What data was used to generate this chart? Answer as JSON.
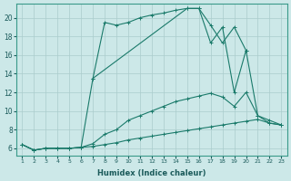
{
  "xlabel": "Humidex (Indice chaleur)",
  "xticks": [
    1,
    2,
    3,
    4,
    5,
    6,
    7,
    8,
    9,
    10,
    11,
    12,
    13,
    14,
    15,
    16,
    17,
    18,
    19,
    20,
    21,
    22,
    23
  ],
  "yticks": [
    6,
    8,
    10,
    12,
    14,
    16,
    18,
    20
  ],
  "background_color": "#cce8e8",
  "grid_color": "#aacccc",
  "line_color": "#1a7a6a",
  "line1_x": [
    1,
    2,
    3,
    4,
    5,
    6,
    7,
    8,
    9,
    10,
    11,
    12,
    13,
    14,
    15,
    16,
    17,
    18,
    19,
    20,
    21,
    22,
    23
  ],
  "line1_y": [
    6.4,
    5.8,
    6.0,
    6.0,
    6.0,
    6.1,
    6.2,
    6.4,
    6.6,
    6.9,
    7.1,
    7.3,
    7.5,
    7.7,
    7.9,
    8.1,
    8.3,
    8.5,
    8.7,
    8.9,
    9.1,
    8.7,
    8.5
  ],
  "line2_x": [
    1,
    2,
    3,
    4,
    5,
    6,
    7,
    8,
    9,
    10,
    11,
    12,
    13,
    14,
    15,
    16,
    17,
    18,
    19,
    20,
    21,
    22,
    23
  ],
  "line2_y": [
    6.4,
    5.8,
    6.0,
    6.0,
    6.0,
    6.1,
    6.5,
    7.5,
    8.0,
    9.0,
    9.5,
    10.0,
    10.5,
    11.0,
    11.3,
    11.6,
    11.9,
    11.5,
    10.5,
    12.0,
    9.5,
    8.7,
    8.5
  ],
  "line3_x": [
    1,
    2,
    3,
    4,
    5,
    6,
    7,
    8,
    9,
    10,
    11,
    12,
    13,
    14,
    15,
    16,
    17,
    18,
    19,
    20
  ],
  "line3_y": [
    6.4,
    5.8,
    6.0,
    6.0,
    6.0,
    6.1,
    13.5,
    19.5,
    19.2,
    19.5,
    20.0,
    20.3,
    20.5,
    20.8,
    21.0,
    21.0,
    19.2,
    17.3,
    19.0,
    16.5
  ],
  "line4_x": [
    7,
    15,
    16,
    17,
    18,
    19,
    20,
    21,
    22,
    23
  ],
  "line4_y": [
    13.5,
    21.0,
    21.0,
    17.3,
    19.0,
    12.0,
    16.5,
    9.5,
    9.0,
    8.5
  ]
}
